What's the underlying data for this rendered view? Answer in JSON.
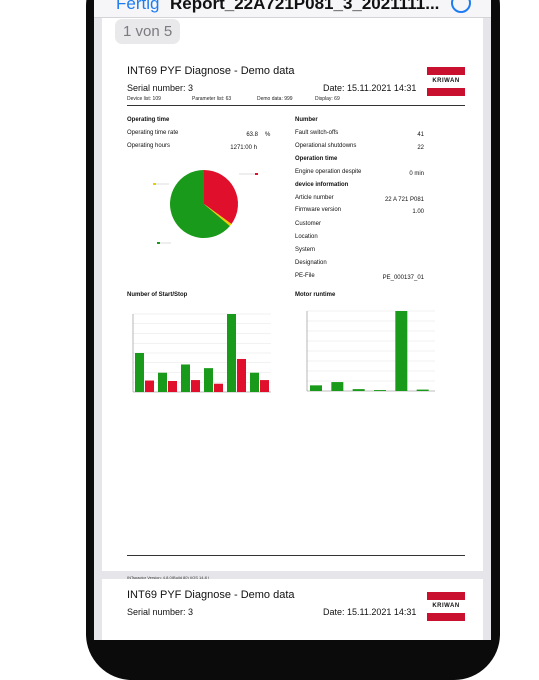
{
  "navbar": {
    "done_label": "Fertig",
    "title": "Report_22A721P081_3_2021111..."
  },
  "pager": "1 von 5",
  "report": {
    "title": "INT69 PYF Diagnose - Demo data",
    "serial": "Serial number: 3",
    "date": "Date: 15.11.2021 14:31",
    "logo_text": "KRIWAN",
    "meta": [
      "Device list: 109",
      "Parameter list: 63",
      "Demo data: 999",
      "Display: 69"
    ],
    "left": {
      "operating_time_heading": "Operating time",
      "rate_label": "Operating time rate",
      "rate_value": "63.8",
      "rate_unit": "%",
      "hours_label": "Operating hours",
      "hours_value": "1271:00 h"
    },
    "right": {
      "number_heading": "Number",
      "fault_label": "Fault switch-offs",
      "fault_value": "41",
      "shutdown_label": "Operational shutdowns",
      "shutdown_value": "22",
      "op_time_heading": "Operation time",
      "engine_label": "Engine operation despite",
      "engine_value": "0 min",
      "device_heading": "device information",
      "article_label": "Article number",
      "article_value": "22 A 721 P081",
      "firmware_label": "Firmware version",
      "firmware_value": "1.00",
      "customer_label": "Customer",
      "location_label": "Location",
      "system_label": "System",
      "designation_label": "Designation",
      "pe_label": "PE-File",
      "pe_value": "PE_000137_01"
    },
    "chart_titles": {
      "starts": "Number of Start/Stop",
      "motor": "Motor runtime"
    },
    "footer": "INTspactor Version: 4.8.0(Build 80) (iOS 14.8 )"
  },
  "page2": {
    "title": "INT69 PYF Diagnose - Demo data",
    "serial": "Serial number: 3",
    "date": "Date: 15.11.2021 14:31",
    "logo_text": "KRIWAN"
  },
  "colors": {
    "green": "#1a9a1a",
    "red": "#e0102c",
    "blue": "#1e7cf2"
  },
  "chart_data": [
    {
      "type": "pie",
      "labels": [
        "Operating",
        "Stopped",
        "Other"
      ],
      "values": [
        63.8,
        35.0,
        1.2
      ],
      "colors": [
        "#1a9a1a",
        "#e0102c",
        "#e8d000"
      ]
    },
    {
      "type": "bar",
      "categories": [
        "1",
        "2",
        "3",
        "4",
        "5",
        "6"
      ],
      "series": [
        {
          "values": [
            8.5,
            4.2,
            6.0,
            5.2,
            17.0,
            4.2
          ],
          "color": "#1a9a1a"
        },
        {
          "values": [
            2.5,
            2.4,
            2.6,
            1.8,
            7.2,
            2.6
          ],
          "color": "#e0102c"
        }
      ],
      "ylim": [
        0,
        17
      ]
    },
    {
      "type": "bar",
      "categories": [
        "1",
        "2",
        "3",
        "4",
        "5",
        "6"
      ],
      "series": [
        {
          "values": [
            1.2,
            1.9,
            0.4,
            0.2,
            17.0,
            0.3
          ],
          "color": "#1a9a1a"
        }
      ],
      "ylim": [
        0,
        17
      ]
    }
  ]
}
